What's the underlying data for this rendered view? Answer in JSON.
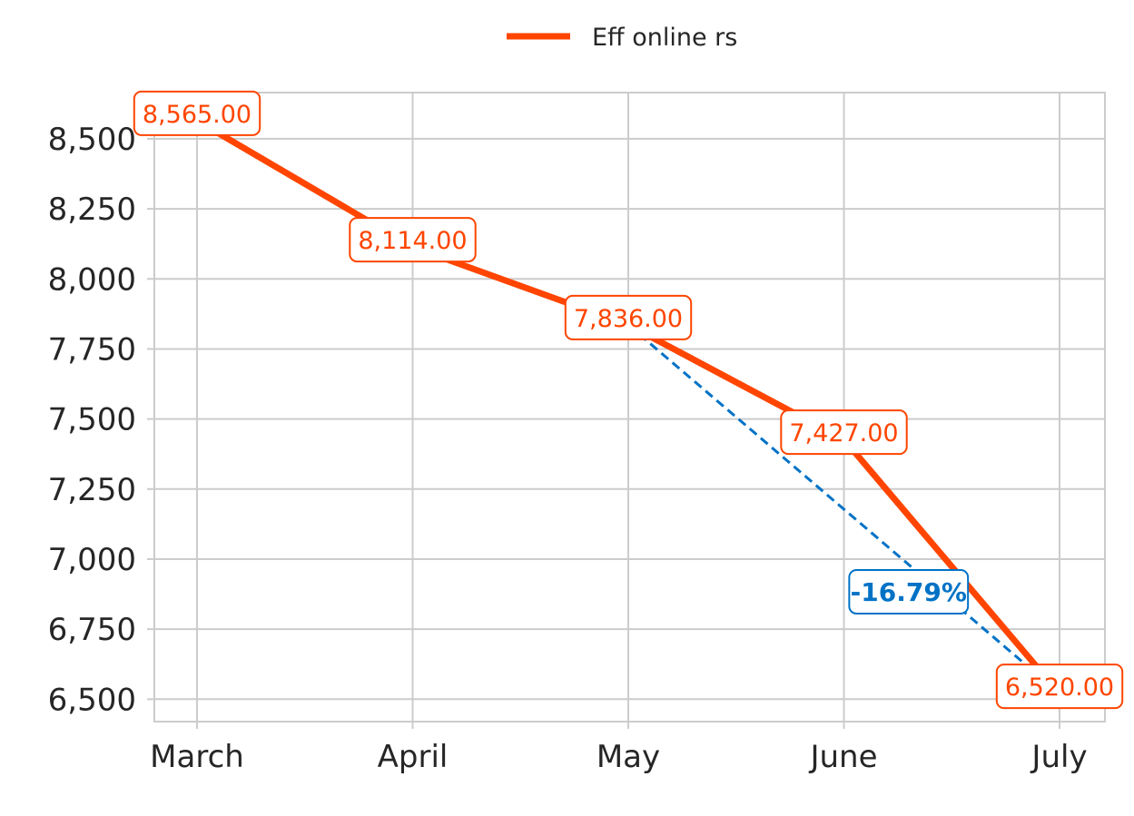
{
  "chart_data": {
    "type": "line",
    "categories": [
      "March",
      "April",
      "May",
      "June",
      "July"
    ],
    "series": [
      {
        "name": "Eff online rs",
        "values": [
          8565,
          8114,
          7836,
          7427,
          6520
        ],
        "labels": [
          "8,565.00",
          "8,114.00",
          "7,836.00",
          "7,427.00",
          "6,520.00"
        ],
        "color": "#FF4500"
      }
    ],
    "y_ticks": [
      6500,
      6750,
      7000,
      7250,
      7500,
      7750,
      8000,
      8250,
      8500
    ],
    "y_tick_labels": [
      "6,500",
      "6,750",
      "7,000",
      "7,250",
      "7,500",
      "7,750",
      "8,000",
      "8,250",
      "8,500"
    ],
    "ylim": [
      6420,
      8665
    ],
    "grid": true,
    "legend_position": "top-center",
    "annotation": {
      "text": "-16.79%",
      "from_category": "May",
      "to_category": "July",
      "color": "#0072C6"
    }
  }
}
